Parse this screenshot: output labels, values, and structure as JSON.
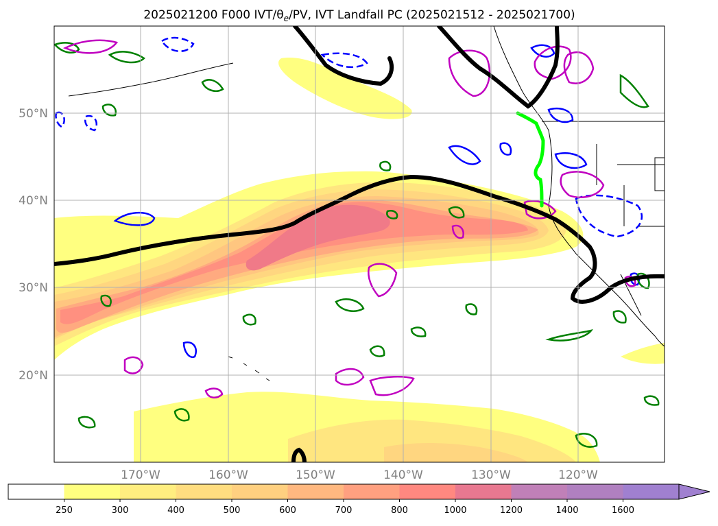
{
  "title": "2025021200 F000 IVT/θe/PV, IVT Landfall PC (2025021512 - 2025021700)",
  "map": {
    "lat_labels": [
      "50°N",
      "40°N",
      "30°N",
      "20°N"
    ],
    "lon_labels": [
      "170°W",
      "160°W",
      "150°W",
      "140°W",
      "130°W",
      "120°W"
    ],
    "ocean_color": "#ffffff",
    "contour_colors": {
      "black": "#000000",
      "blue": "#0000ff",
      "green": "#008000",
      "magenta": "#c000c0",
      "landfall": "#00ff00"
    }
  },
  "colorbar": {
    "ticks": [
      "250",
      "300",
      "400",
      "500",
      "600",
      "700",
      "800",
      "1000",
      "1200",
      "1400",
      "1600"
    ],
    "colors": [
      "#ffffff",
      "#ffff80",
      "#ffee80",
      "#ffdd80",
      "#ffd080",
      "#ffb880",
      "#ffa080",
      "#ff8880",
      "#e87890",
      "#c080b8",
      "#b080c0",
      "#a080d0"
    ]
  }
}
